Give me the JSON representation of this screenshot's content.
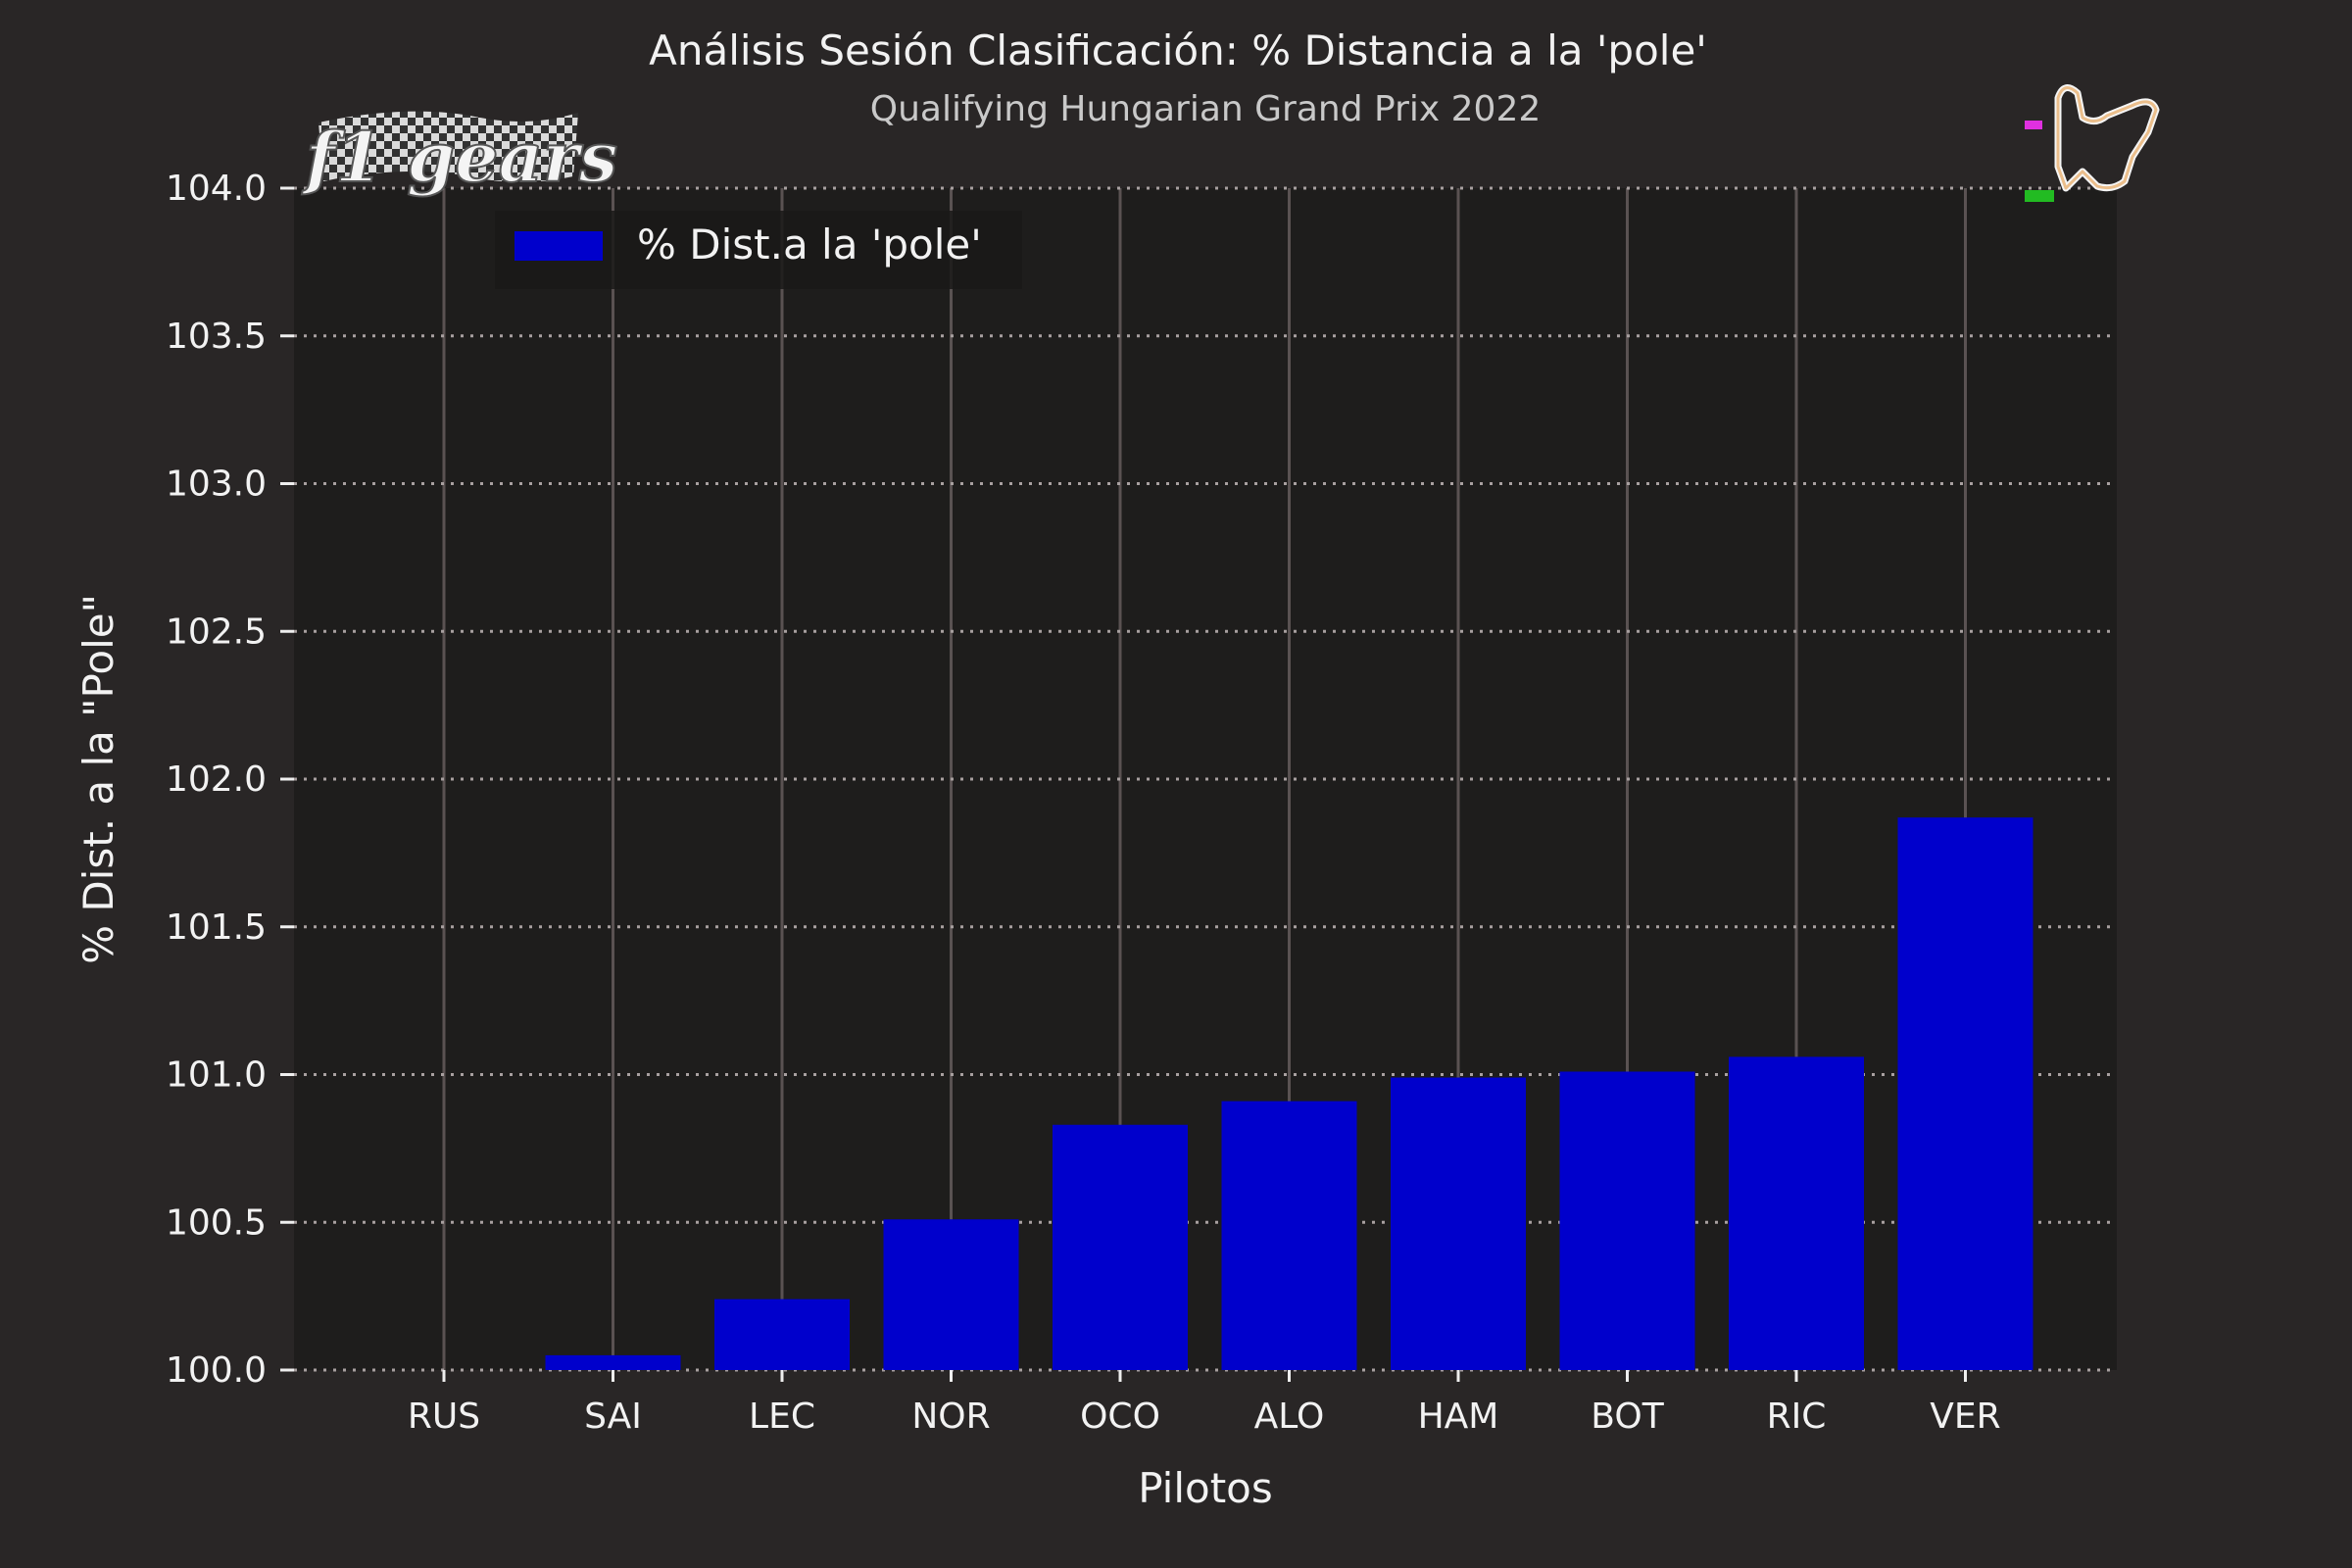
{
  "chart_data": {
    "type": "bar",
    "title": "Análisis Sesión Clasificación: % Distancia a la 'pole'",
    "subtitle": "Qualifying Hungarian Grand Prix 2022",
    "xlabel": "Pilotos",
    "ylabel": "% Dist. a la \"Pole\"",
    "categories": [
      "RUS",
      "SAI",
      "LEC",
      "NOR",
      "OCO",
      "ALO",
      "HAM",
      "BOT",
      "RIC",
      "VER"
    ],
    "series": [
      {
        "name": "% Dist.a la 'pole'",
        "values": [
          100.0,
          100.05,
          100.24,
          100.51,
          100.83,
          100.91,
          100.99,
          101.01,
          101.06,
          101.87
        ]
      }
    ],
    "ylim": [
      100.0,
      104.0
    ],
    "yticks": [
      "100.0",
      "100.5",
      "101.0",
      "101.5",
      "102.0",
      "102.5",
      "103.0",
      "103.5",
      "104.0"
    ],
    "grid": "horizontal dotted, vertical solid at categories",
    "legend_position": "top-left"
  },
  "logo": {
    "text": "f1 gears"
  },
  "colors": {
    "background": "#292626",
    "plot_background": "#1e1d1c",
    "bar": "#0000cc",
    "grid": "#5a5252",
    "text": "#f2f2f2"
  },
  "icons": {
    "track_map": "hungaroring-track-icon"
  }
}
